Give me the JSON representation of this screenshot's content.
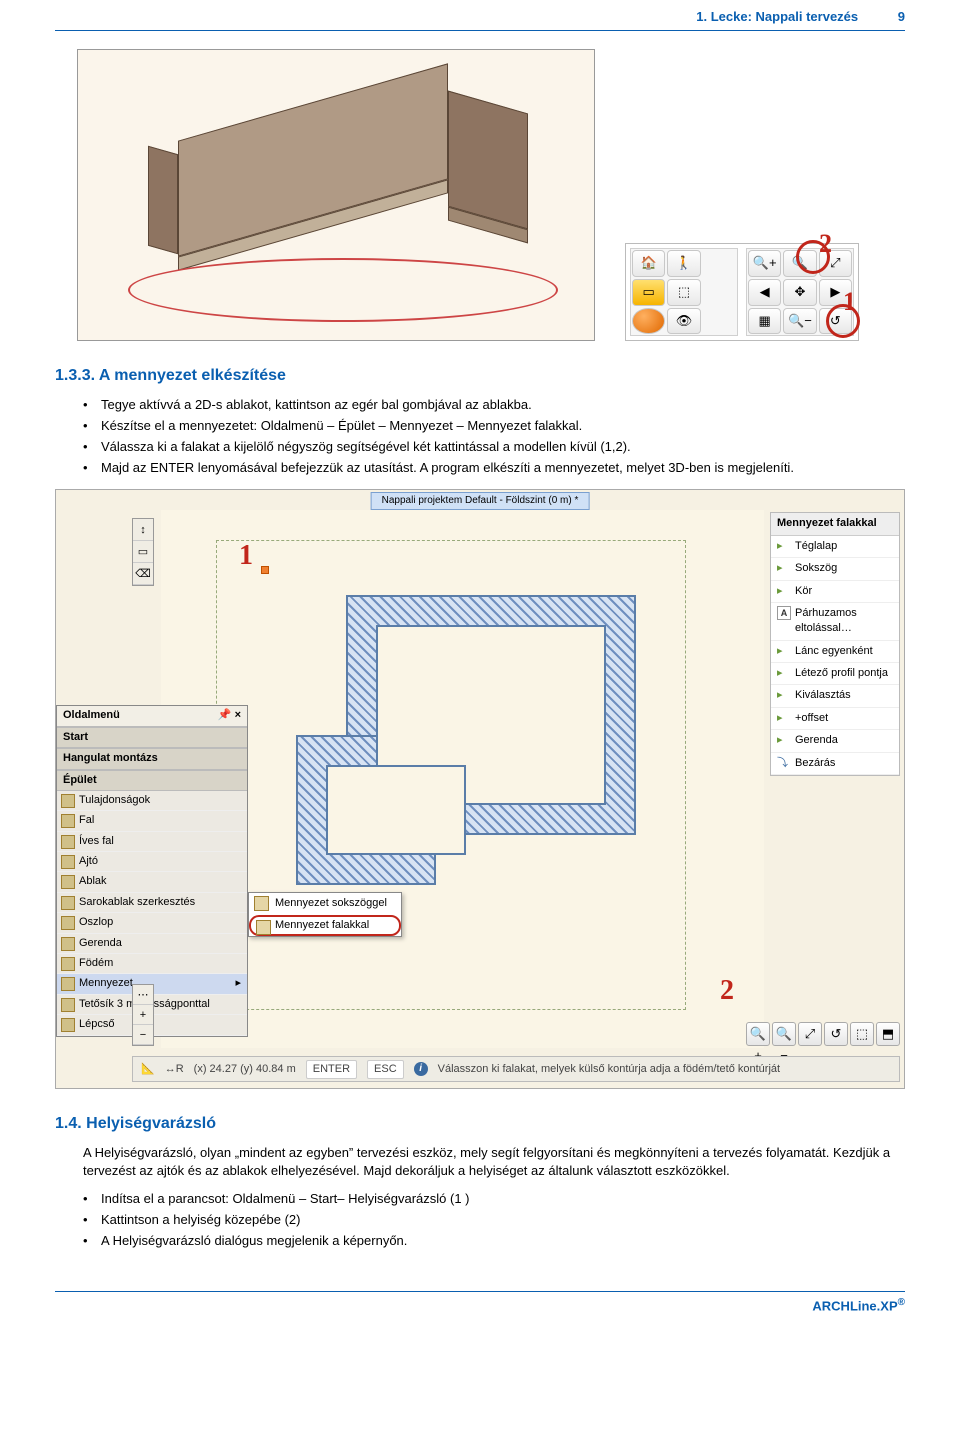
{
  "header": {
    "title": "1. Lecke: Nappali tervezés",
    "page": "9"
  },
  "fig1": {
    "background": "#fbf5eb",
    "wall_colors": [
      "#b09a85",
      "#8e7461",
      "#c1b099",
      "#9f8872",
      "#8e7461"
    ],
    "ring_color": "#cd4545",
    "badge_color": "#c1261b",
    "badge1": "1",
    "badge2": "2",
    "wheelL": {
      "grid": [
        [
          "🏠",
          "🚶",
          ""
        ],
        [
          "▭",
          "⬚",
          ""
        ],
        [
          "orb",
          "👁",
          ""
        ]
      ]
    },
    "wheelR": {
      "grid": [
        [
          "🔍+",
          "🔍",
          "⤢"
        ],
        [
          "◀",
          "✥",
          "▶"
        ],
        [
          "▦",
          "🔍−",
          "↺"
        ]
      ]
    }
  },
  "section133": {
    "heading": "1.3.3.   A mennyezet elkészítése",
    "bullets": [
      "Tegye aktívvá a 2D-s ablakot, kattintson az egér bal gombjával az ablakba.",
      "Készítse el a mennyezetet: Oldalmenü – Épület – Mennyezet – Mennyezet falakkal.",
      "Válassza ki a falakat a kijelölő négyszög segítségével két kattintással a modellen kívül (1,2).",
      "Majd az ENTER lenyomásával befejezzük az utasítást. A program elkészíti a mennyezetet, melyet 3D-ben is megjeleníti."
    ]
  },
  "fig2": {
    "canvas_bg": "#faf5e6",
    "dash_color": "#97a97a",
    "plan_stroke": "#5a7da8",
    "plan_hatch": "#6f8fbf",
    "label1": "1",
    "label2": "2",
    "title_strip": "Nappali projektem  Default - Földszint (0 m) *",
    "side_panel": {
      "title": "Oldalmenü",
      "sections": [
        "Start",
        "Hangulat montázs",
        "Épület"
      ],
      "items": [
        "Tulajdonságok",
        "Fal",
        "Íves fal",
        "Ajtó",
        "Ablak",
        "Sarokablak szerkesztés",
        "Oszlop",
        "Gerenda",
        "Födém",
        "Mennyezet",
        "Tetősík 3 magasságponttal",
        "Lépcső"
      ],
      "selected_index": 9
    },
    "flyout": {
      "items": [
        "Mennyezet sokszöggel",
        "Mennyezet falakkal"
      ],
      "selected_index": 1
    },
    "right_panel": {
      "head": "Mennyezet falakkal",
      "rows": [
        {
          "label": "Téglalap",
          "type": "play"
        },
        {
          "label": "Sokszög",
          "type": "play"
        },
        {
          "label": "Kör",
          "type": "play"
        },
        {
          "label": "Párhuzamos eltolással…",
          "type": "a"
        },
        {
          "label": "Lánc egyenként",
          "type": "play"
        },
        {
          "label": "Létező profil pontja",
          "type": "play"
        },
        {
          "label": "Kiválasztás",
          "type": "play"
        },
        {
          "label": "+offset",
          "type": "play"
        },
        {
          "label": "Gerenda",
          "type": "play"
        },
        {
          "label": "Bezárás",
          "type": "close"
        }
      ]
    },
    "vtool": [
      "↕",
      "▭",
      "⌫"
    ],
    "zoomL": [
      "⋯",
      "+",
      "−"
    ],
    "zoomR": [
      "🔍+",
      "🔍−",
      "⤢",
      "↺",
      "⬚",
      "⬒"
    ],
    "status": {
      "coord_prefix": "(x) 24.27   (y) 40.84 m",
      "enter": "ENTER",
      "esc": "ESC",
      "hint": "Válasszon ki falakat, melyek külső kontúrja adja a födém/tető kontúrját"
    }
  },
  "section14": {
    "heading": "1.4.   Helyiségvarázsló",
    "para1": "A Helyiségvarázsló, olyan „mindent az egyben” tervezési eszköz, mely segít felgyorsítani és megkönnyíteni a tervezés folyamatát. Kezdjük a tervezést az ajtók és az ablakok elhelyezésével. Majd dekoráljuk a helyiséget az általunk választott eszközökkel.",
    "bullets": [
      "Indítsa el a parancsot: Oldalmenü – Start– Helyiségvarázsló (1 )",
      "Kattintson a helyiség közepébe (2)",
      "A Helyiségvarázsló dialógus megjelenik a képernyőn."
    ]
  },
  "footer": {
    "brand": "ARCHLine.XP",
    "reg": "®"
  }
}
